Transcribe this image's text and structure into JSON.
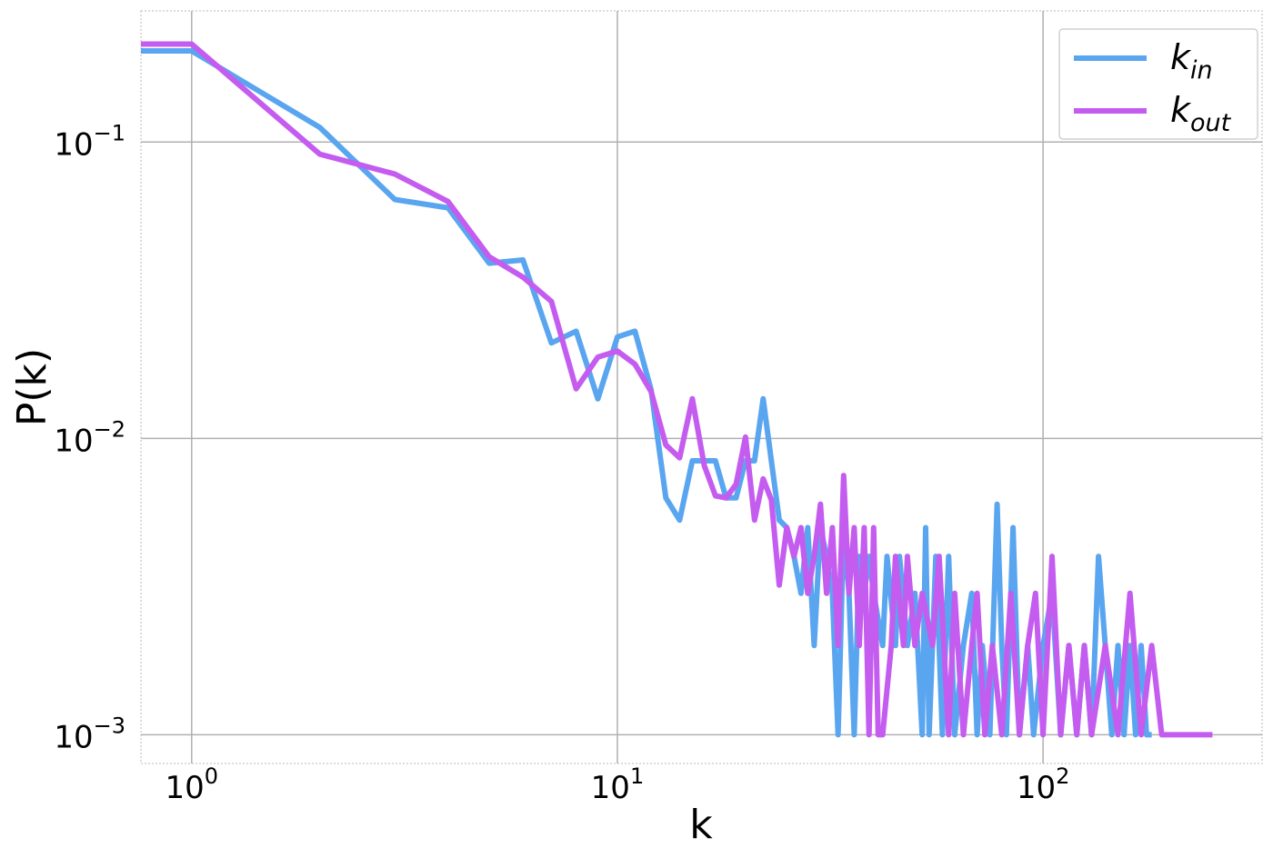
{
  "chart_data": {
    "type": "line",
    "xlabel": "k",
    "ylabel": "P(k)",
    "xscale": "log",
    "yscale": "log",
    "grid": true,
    "legend": "upper right",
    "xlim": [
      0.76,
      327
    ],
    "ylim": [
      0.0008,
      0.277
    ],
    "xticks": [
      {
        "value": 1,
        "label": "10",
        "exponent": "0"
      },
      {
        "value": 10,
        "label": "10",
        "exponent": "1"
      },
      {
        "value": 100,
        "label": "10",
        "exponent": "2"
      }
    ],
    "yticks": [
      {
        "value": 0.001,
        "label": "10",
        "exponent": "−3"
      },
      {
        "value": 0.01,
        "label": "10",
        "exponent": "−2"
      },
      {
        "value": 0.1,
        "label": "10",
        "exponent": "−1"
      }
    ],
    "series": [
      {
        "name": "k",
        "subscript": "in",
        "color": "#5aa5f0",
        "x": [
          0.76,
          1,
          2,
          3,
          4,
          5,
          6,
          7,
          8,
          9,
          10,
          11,
          12,
          13,
          14,
          15,
          16,
          17,
          18,
          19,
          20,
          21,
          22,
          23,
          24,
          25,
          26,
          27,
          28,
          29,
          30,
          31,
          32,
          33,
          34,
          35,
          36,
          37,
          38,
          39,
          40,
          42,
          43,
          45,
          46,
          48,
          50,
          52,
          53,
          54,
          56,
          58,
          60,
          62,
          65,
          68,
          70,
          72,
          75,
          78,
          80,
          82,
          85,
          88,
          92,
          95,
          100,
          105,
          110,
          115,
          120,
          125,
          130,
          135,
          140,
          145,
          150,
          155,
          160,
          165,
          170,
          175,
          180
        ],
        "values": [
          0.203,
          0.203,
          0.112,
          0.064,
          0.06,
          0.039,
          0.04,
          0.021,
          0.023,
          0.0136,
          0.022,
          0.023,
          0.0146,
          0.0063,
          0.0053,
          0.0084,
          0.0084,
          0.0084,
          0.0063,
          0.0063,
          0.0084,
          0.0084,
          0.0136,
          0.0084,
          0.0053,
          0.005,
          0.004,
          0.003,
          0.005,
          0.002,
          0.005,
          0.004,
          0.003,
          0.001,
          0.005,
          0.003,
          0.001,
          0.004,
          0.003,
          0.004,
          0.003,
          0.002,
          0.004,
          0.002,
          0.004,
          0.002,
          0.003,
          0.001,
          0.005,
          0.001,
          0.004,
          0.001,
          0.004,
          0.001,
          0.002,
          0.003,
          0.001,
          0.002,
          0.001,
          0.006,
          0.002,
          0.001,
          0.005,
          0.001,
          0.002,
          0.001,
          0.002,
          0.003,
          0.001,
          0.002,
          0.001,
          0.002,
          0.001,
          0.004,
          0.002,
          0.001,
          0.002,
          0.001,
          0.002,
          0.001,
          0.002,
          0.001,
          0.001
        ]
      },
      {
        "name": "k",
        "subscript": "out",
        "color": "#c45cf0",
        "x": [
          0.76,
          1,
          2,
          3,
          4,
          5,
          6,
          7,
          8,
          9,
          10,
          11,
          12,
          13,
          14,
          15,
          16,
          17,
          18,
          19,
          20,
          21,
          22,
          23,
          24,
          25,
          26,
          27,
          28,
          29,
          30,
          31,
          32,
          33,
          34,
          35,
          36,
          37,
          38,
          39,
          40,
          41,
          42,
          44,
          45,
          47,
          48,
          50,
          52,
          55,
          57,
          60,
          62,
          65,
          68,
          70,
          73,
          76,
          80,
          84,
          88,
          92,
          96,
          100,
          105,
          110,
          115,
          120,
          125,
          130,
          140,
          150,
          160,
          170,
          180,
          190,
          200,
          250
        ],
        "values": [
          0.214,
          0.214,
          0.091,
          0.078,
          0.063,
          0.041,
          0.035,
          0.029,
          0.0147,
          0.0188,
          0.0197,
          0.0178,
          0.0144,
          0.0095,
          0.0086,
          0.0136,
          0.0081,
          0.0064,
          0.0063,
          0.007,
          0.0101,
          0.0053,
          0.0073,
          0.0062,
          0.0032,
          0.005,
          0.004,
          0.005,
          0.003,
          0.004,
          0.006,
          0.003,
          0.005,
          0.002,
          0.0075,
          0.003,
          0.005,
          0.002,
          0.005,
          0.001,
          0.005,
          0.001,
          0.001,
          0.002,
          0.004,
          0.002,
          0.004,
          0.002,
          0.003,
          0.002,
          0.004,
          0.001,
          0.003,
          0.001,
          0.002,
          0.003,
          0.001,
          0.002,
          0.001,
          0.003,
          0.001,
          0.002,
          0.003,
          0.001,
          0.004,
          0.001,
          0.002,
          0.001,
          0.002,
          0.001,
          0.002,
          0.001,
          0.003,
          0.001,
          0.002,
          0.001,
          0.001,
          0.001
        ]
      }
    ]
  }
}
